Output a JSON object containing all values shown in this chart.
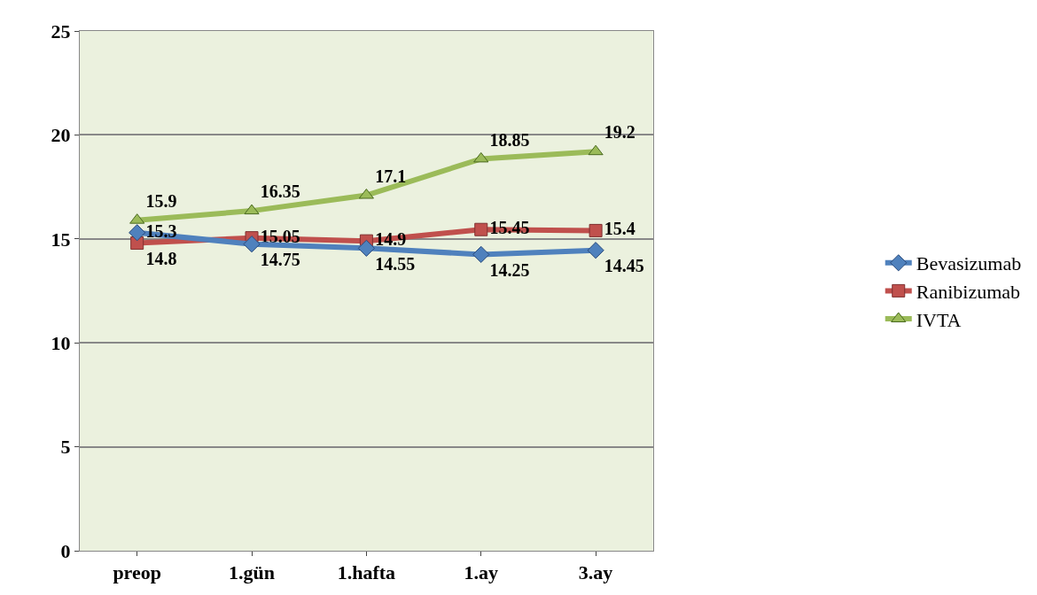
{
  "chart_data": {
    "type": "line",
    "categories": [
      "preop",
      "1.gün",
      "1.hafta",
      "1.ay",
      "3.ay"
    ],
    "series": [
      {
        "name": "Bevasizumab",
        "color": "#4f81bd",
        "marker": "diamond",
        "values": [
          15.3,
          14.75,
          14.55,
          14.25,
          14.45
        ]
      },
      {
        "name": "Ranibizumab",
        "color": "#c0504d",
        "marker": "square",
        "values": [
          14.8,
          15.05,
          14.9,
          15.45,
          15.4
        ]
      },
      {
        "name": "IVTA",
        "color": "#9bbb59",
        "marker": "triangle",
        "values": [
          15.9,
          16.35,
          17.1,
          18.85,
          19.2
        ]
      }
    ],
    "ylim": [
      0,
      25
    ],
    "yticks": [
      0,
      5,
      10,
      15,
      20,
      25
    ],
    "grid": "y",
    "legend": "right",
    "data_labels": true
  }
}
